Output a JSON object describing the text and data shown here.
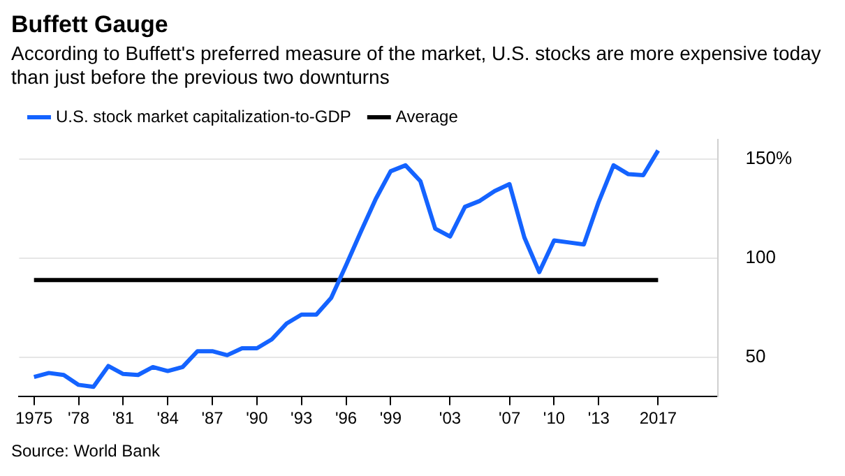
{
  "chart_data": {
    "type": "line",
    "title": "Buffett Gauge",
    "subtitle": "According to Buffett's preferred measure of the market, U.S. stocks are more expensive today than just before the previous two downturns",
    "x": [
      1975,
      1976,
      1977,
      1978,
      1979,
      1980,
      1981,
      1982,
      1983,
      1984,
      1985,
      1986,
      1987,
      1988,
      1989,
      1990,
      1991,
      1992,
      1993,
      1994,
      1995,
      1996,
      1997,
      1998,
      1999,
      2000,
      2001,
      2002,
      2003,
      2004,
      2005,
      2006,
      2007,
      2008,
      2009,
      2010,
      2011,
      2012,
      2013,
      2014,
      2015,
      2016,
      2017
    ],
    "series": [
      {
        "name": "U.S. stock market capitalization-to-GDP",
        "color": "#1463ff",
        "values": [
          40,
          42,
          41,
          36,
          35,
          45.5,
          41.5,
          41,
          45,
          43,
          45,
          53,
          53,
          51,
          54.5,
          54.5,
          59,
          67,
          71.5,
          71.5,
          80,
          96.5,
          113.5,
          130,
          144,
          147,
          139,
          115,
          111,
          126,
          129,
          134,
          137.5,
          110.5,
          93,
          109,
          108,
          107,
          128.5,
          147,
          142.5,
          142,
          154.5
        ]
      }
    ],
    "ref_lines": [
      {
        "axis": "y",
        "value": 89,
        "label": "Average",
        "color": "#000000"
      }
    ],
    "xlim": [
      1974,
      2021
    ],
    "xticks": [
      {
        "value": 1975,
        "label": "1975"
      },
      {
        "value": 1978,
        "label": "'78"
      },
      {
        "value": 1981,
        "label": "'81"
      },
      {
        "value": 1984,
        "label": "'84"
      },
      {
        "value": 1987,
        "label": "'87"
      },
      {
        "value": 1990,
        "label": "'90"
      },
      {
        "value": 1993,
        "label": "'93"
      },
      {
        "value": 1996,
        "label": "'96"
      },
      {
        "value": 1999,
        "label": "'99"
      },
      {
        "value": 2003,
        "label": "'03"
      },
      {
        "value": 2007,
        "label": "'07"
      },
      {
        "value": 2010,
        "label": "'10"
      },
      {
        "value": 2013,
        "label": "'13"
      },
      {
        "value": 2017,
        "label": "2017"
      }
    ],
    "yticks": [
      50,
      100,
      {
        "value": 150,
        "label": "150%"
      }
    ],
    "ylim": [
      30,
      160
    ],
    "grid": "y",
    "legend": "top left",
    "marker": "none",
    "line_style": "solid",
    "annotations": [
      "Source: World Bank"
    ]
  }
}
